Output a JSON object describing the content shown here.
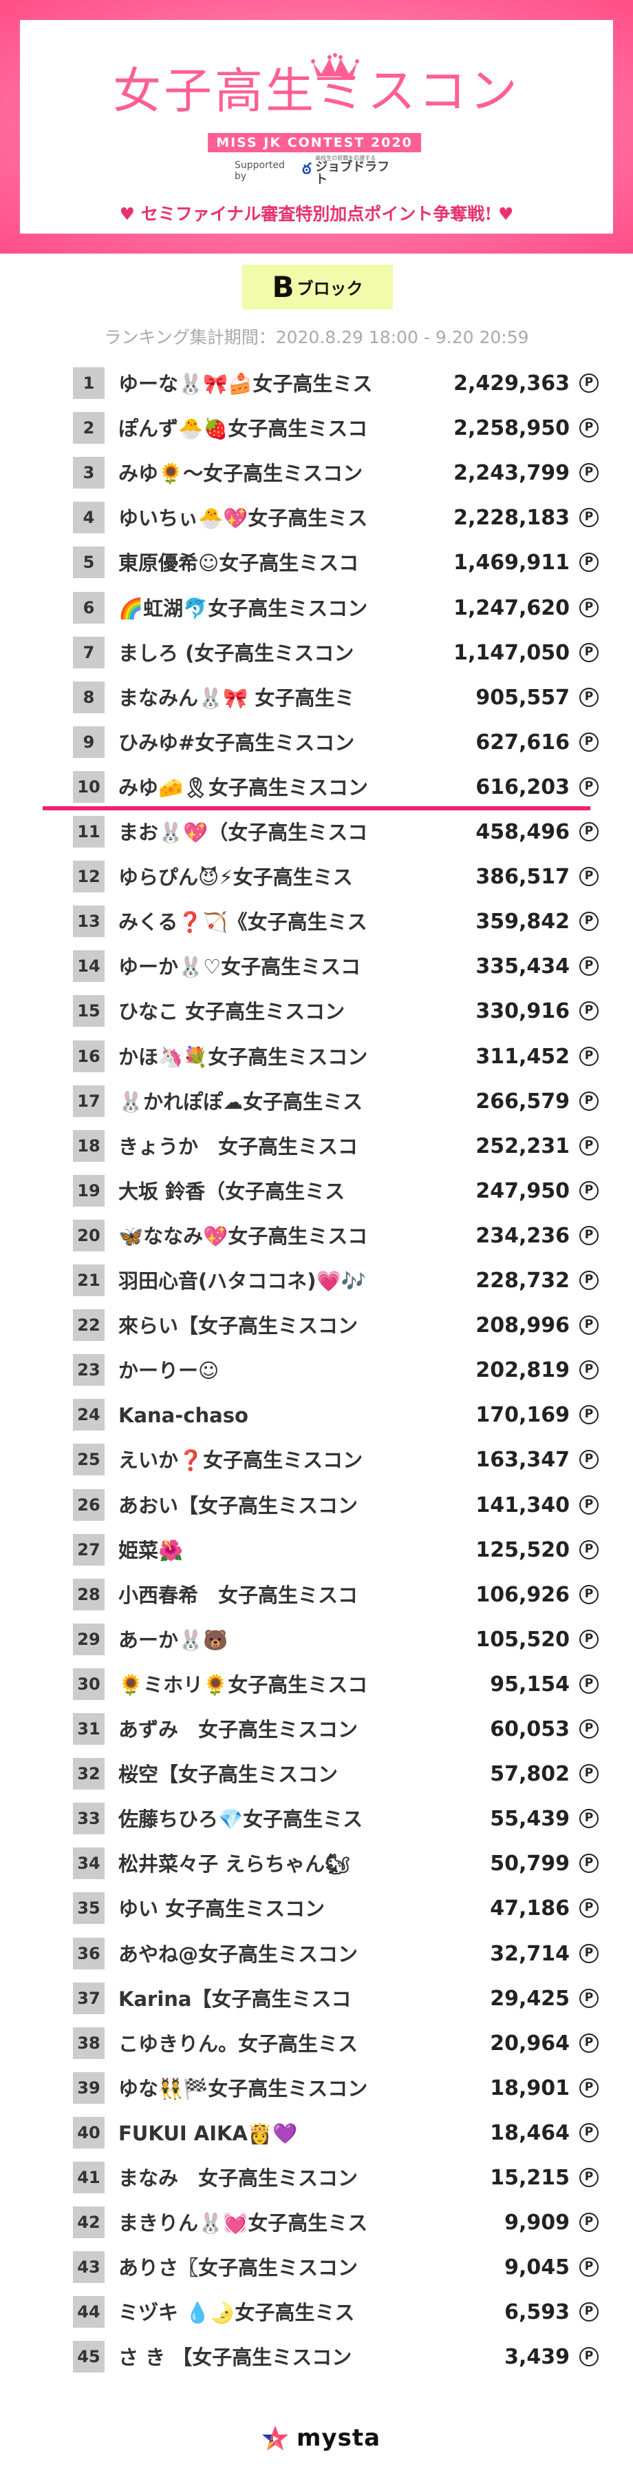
{
  "header": {
    "title": "女子高生ミスコン",
    "subtitle": "MISS JK CONTEST 2020",
    "supported_by": "Supported by",
    "sponsor_tagline": "高校生の就職を応援する",
    "sponsor": "ジョブドラフト",
    "headline": "セミファイナル審査特別加点ポイント争奪戦!",
    "heart": "♥"
  },
  "block": {
    "letter": "B",
    "label": "ブロック"
  },
  "period": "ランキング集計期間：2020.8.29 18:00 - 9.20 20:59",
  "point_symbol": "P",
  "cutoff_after_rank": 10,
  "colors": {
    "accent": "#ff5f95",
    "cutline": "#f0206e",
    "block_bg": "#f1fbaa",
    "rank_bg": "#cccccc"
  },
  "rankings": [
    {
      "rank": "1",
      "name": "ゆーな🐰🎀🍰女子高生ミス",
      "score": "2,429,363"
    },
    {
      "rank": "2",
      "name": "ぽんず🐣🍓女子高生ミスコ",
      "score": "2,258,950"
    },
    {
      "rank": "3",
      "name": "みゆ🌻〜女子高生ミスコン",
      "score": "2,243,799"
    },
    {
      "rank": "4",
      "name": "ゆいちぃ🐣💖女子高生ミス",
      "score": "2,228,183"
    },
    {
      "rank": "5",
      "name": "東原優希☺女子高生ミスコ",
      "score": "1,469,911"
    },
    {
      "rank": "6",
      "name": "🌈虹湖🐬女子高生ミスコン",
      "score": "1,247,620"
    },
    {
      "rank": "7",
      "name": "ましろ (女子高生ミスコン",
      "score": "1,147,050"
    },
    {
      "rank": "8",
      "name": "まなみん🐰🎀 女子高生ミ",
      "score": "905,557"
    },
    {
      "rank": "9",
      "name": "ひみゆ#女子高生ミスコン",
      "score": "627,616"
    },
    {
      "rank": "10",
      "name": "みゆ🧀🎗女子高生ミスコン",
      "score": "616,203"
    },
    {
      "rank": "11",
      "name": "まお🐰💖（女子高生ミスコ",
      "score": "458,496"
    },
    {
      "rank": "12",
      "name": "ゆらぴん😈⚡女子高生ミス",
      "score": "386,517"
    },
    {
      "rank": "13",
      "name": "みくる❓🏹《女子高生ミス",
      "score": "359,842"
    },
    {
      "rank": "14",
      "name": "ゆーか🐰♡女子高生ミスコ",
      "score": "335,434"
    },
    {
      "rank": "15",
      "name": "ひなこ 女子高生ミスコン",
      "score": "330,916"
    },
    {
      "rank": "16",
      "name": "かほ🦄💐女子高生ミスコン",
      "score": "311,452"
    },
    {
      "rank": "17",
      "name": "🐰かれぽぽ☁女子高生ミス",
      "score": "266,579"
    },
    {
      "rank": "18",
      "name": "きょうか　女子高生ミスコ",
      "score": "252,231"
    },
    {
      "rank": "19",
      "name": "大坂 鈴香（女子高生ミス",
      "score": "247,950"
    },
    {
      "rank": "20",
      "name": "🦋ななみ💖女子高生ミスコ",
      "score": "234,236"
    },
    {
      "rank": "21",
      "name": "羽田心音(ハタココネ)💗🎶",
      "score": "228,732"
    },
    {
      "rank": "22",
      "name": "來らい【女子高生ミスコン",
      "score": "208,996"
    },
    {
      "rank": "23",
      "name": "かーりー☺",
      "score": "202,819"
    },
    {
      "rank": "24",
      "name": "Kana-chaso",
      "score": "170,169"
    },
    {
      "rank": "25",
      "name": "えいか❓女子高生ミスコン",
      "score": "163,347"
    },
    {
      "rank": "26",
      "name": "あおい【女子高生ミスコン",
      "score": "141,340"
    },
    {
      "rank": "27",
      "name": "姫菜🌺",
      "score": "125,520"
    },
    {
      "rank": "28",
      "name": "小西春希　女子高生ミスコ",
      "score": "106,926"
    },
    {
      "rank": "29",
      "name": "あーか🐰🐻",
      "score": "105,520"
    },
    {
      "rank": "30",
      "name": "🌻ミホリ🌻女子高生ミスコ",
      "score": "95,154"
    },
    {
      "rank": "31",
      "name": "あずみ　女子高生ミスコン",
      "score": "60,053"
    },
    {
      "rank": "32",
      "name": "桜空【女子高生ミスコン",
      "score": "57,802"
    },
    {
      "rank": "33",
      "name": "佐藤ちひろ💎女子高生ミス",
      "score": "55,439"
    },
    {
      "rank": "34",
      "name": "松井菜々子 えらちゃん🐿",
      "score": "50,799"
    },
    {
      "rank": "35",
      "name": "ゆい 女子高生ミスコン",
      "score": "47,186"
    },
    {
      "rank": "36",
      "name": "あやね@女子高生ミスコン",
      "score": "32,714"
    },
    {
      "rank": "37",
      "name": "Karina【女子高生ミスコ",
      "score": "29,425"
    },
    {
      "rank": "38",
      "name": "こゆきりん。女子高生ミス",
      "score": "20,964"
    },
    {
      "rank": "39",
      "name": "ゆな👯🏁女子高生ミスコン",
      "score": "18,901"
    },
    {
      "rank": "40",
      "name": "FUKUI AIKA👸💜",
      "score": "18,464"
    },
    {
      "rank": "41",
      "name": "まなみ　女子高生ミスコン",
      "score": "15,215"
    },
    {
      "rank": "42",
      "name": "まきりん🐰💓女子高生ミス",
      "score": "9,909"
    },
    {
      "rank": "43",
      "name": "ありさ〖女子高生ミスコン",
      "score": "9,045"
    },
    {
      "rank": "44",
      "name": "ミヅキ 💧🌛女子高生ミス",
      "score": "6,593"
    },
    {
      "rank": "45",
      "name": "さ き 【女子高生ミスコン",
      "score": "3,439"
    }
  ],
  "footer": {
    "brand": "mysta"
  }
}
